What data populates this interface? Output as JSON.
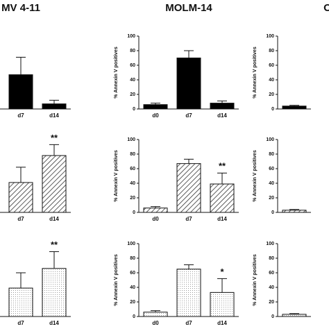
{
  "chart_data": [
    {
      "type": "bar",
      "title": "MV 4-11",
      "categories": [
        null,
        "d7",
        "d14"
      ],
      "values": [
        null,
        47,
        7
      ],
      "errors": [
        null,
        24,
        5
      ],
      "value_annotations": [
        null,
        null,
        null
      ],
      "fill": "solid",
      "color": "#000000",
      "ylim": [
        0,
        100
      ]
    },
    {
      "type": "bar",
      "title": "MOLM-14",
      "ylabel": "% Annexin V positives",
      "categories": [
        "d0",
        "d7",
        "d14"
      ],
      "values": [
        6,
        70,
        8
      ],
      "errors": [
        2,
        10,
        3
      ],
      "value_annotations": [
        null,
        null,
        null
      ],
      "fill": "solid",
      "color": "#000000",
      "ylim": [
        0,
        100
      ],
      "yticks": [
        0,
        20,
        40,
        60,
        80,
        100
      ]
    },
    {
      "type": "bar",
      "title": "O",
      "ylabel": "% Annexin V positives",
      "categories": [
        null
      ],
      "values": [
        4
      ],
      "errors": [
        1
      ],
      "value_annotations": [
        null
      ],
      "fill": "solid",
      "color": "#000000",
      "ylim": [
        0,
        100
      ],
      "yticks": [
        0,
        20,
        40,
        60,
        80,
        100
      ]
    },
    {
      "type": "bar",
      "categories": [
        null,
        "d7",
        "d14"
      ],
      "values": [
        null,
        41,
        78
      ],
      "errors": [
        null,
        21,
        15
      ],
      "value_annotations": [
        null,
        null,
        "**"
      ],
      "fill": "hatch",
      "color": "#000000",
      "ylim": [
        0,
        100
      ]
    },
    {
      "type": "bar",
      "ylabel": "% Annexin V positives",
      "categories": [
        "d0",
        "d7",
        "d14"
      ],
      "values": [
        6,
        67,
        39
      ],
      "errors": [
        2,
        6,
        15
      ],
      "value_annotations": [
        null,
        null,
        "**"
      ],
      "fill": "hatch",
      "color": "#000000",
      "ylim": [
        0,
        100
      ],
      "yticks": [
        0,
        20,
        40,
        60,
        80,
        100
      ]
    },
    {
      "type": "bar",
      "ylabel": "% Annexin V positives",
      "categories": [
        null
      ],
      "values": [
        3
      ],
      "errors": [
        1
      ],
      "value_annotations": [
        null
      ],
      "fill": "hatch",
      "color": "#000000",
      "ylim": [
        0,
        100
      ],
      "yticks": [
        0,
        20,
        40,
        60,
        80,
        100
      ]
    },
    {
      "type": "bar",
      "categories": [
        null,
        "d7",
        "d14"
      ],
      "values": [
        null,
        39,
        66
      ],
      "errors": [
        null,
        21,
        23
      ],
      "value_annotations": [
        null,
        null,
        "**"
      ],
      "fill": "dots",
      "color": "#000000",
      "ylim": [
        0,
        100
      ]
    },
    {
      "type": "bar",
      "ylabel": "% Annexin V positives",
      "categories": [
        "d0",
        "d7",
        "d14"
      ],
      "values": [
        6,
        65,
        33
      ],
      "errors": [
        2,
        6,
        19
      ],
      "value_annotations": [
        null,
        null,
        "*"
      ],
      "fill": "dots",
      "color": "#000000",
      "ylim": [
        0,
        100
      ],
      "yticks": [
        0,
        20,
        40,
        60,
        80,
        100
      ]
    },
    {
      "type": "bar",
      "ylabel": "% Annexin V positives",
      "categories": [
        null
      ],
      "values": [
        3
      ],
      "errors": [
        1
      ],
      "value_annotations": [
        null
      ],
      "fill": "dots",
      "color": "#000000",
      "ylim": [
        0,
        100
      ],
      "yticks": [
        0,
        20,
        40,
        60,
        80,
        100
      ]
    }
  ]
}
